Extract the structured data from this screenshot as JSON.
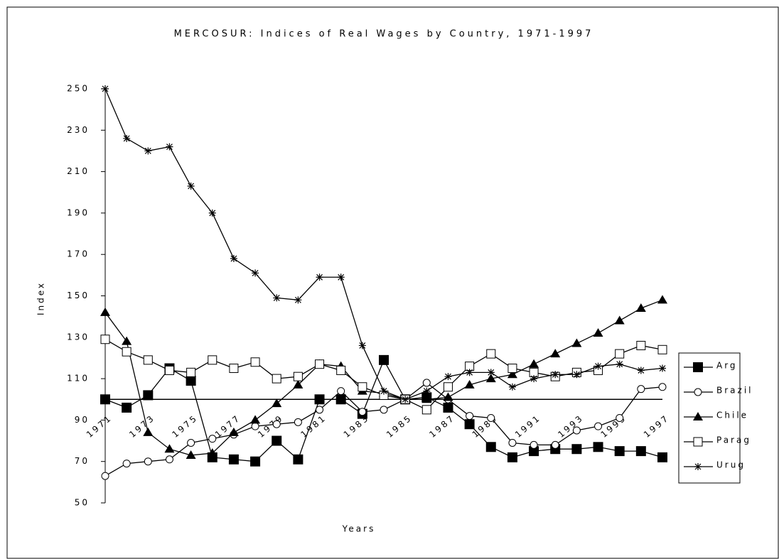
{
  "chart_data": {
    "type": "line",
    "title": "MERCOSUR: Indices of Real Wages by Country, 1971-1997",
    "x_label": "Years",
    "y_label": "Index",
    "categories": [
      "1971",
      null,
      "1973",
      null,
      "1975",
      null,
      "1977",
      null,
      "1979",
      null,
      "1981",
      null,
      "1983",
      null,
      "1985",
      null,
      "1987",
      null,
      "1989",
      null,
      "1991",
      null,
      "1993",
      null,
      "1995",
      null,
      "1997"
    ],
    "ylim": [
      50,
      250
    ],
    "yticks": [
      50,
      70,
      90,
      110,
      130,
      150,
      170,
      190,
      210,
      230,
      250
    ],
    "hline": 100,
    "series": [
      {
        "name": "Arg",
        "color": "#000000",
        "marker": "square-filled",
        "values": [
          100,
          96,
          102,
          115,
          109,
          72,
          71,
          70,
          80,
          71,
          100,
          100,
          93,
          119,
          100,
          101,
          96,
          88,
          77,
          72,
          75,
          76,
          76,
          77,
          75,
          75,
          72
        ]
      },
      {
        "name": "Brazil",
        "color": "#000000",
        "marker": "circle-open",
        "values": [
          63,
          69,
          70,
          71,
          79,
          81,
          83,
          87,
          88,
          89,
          95,
          104,
          94,
          95,
          100,
          108,
          100,
          92,
          91,
          79,
          78,
          78,
          85,
          87,
          91,
          105,
          106
        ]
      },
      {
        "name": "Chile",
        "color": "#000000",
        "marker": "triangle-filled",
        "values": [
          142,
          128,
          84,
          76,
          73,
          74,
          84,
          90,
          98,
          107,
          117,
          116,
          104,
          103,
          100,
          100,
          101,
          107,
          110,
          112,
          117,
          122,
          127,
          132,
          138,
          144,
          148
        ]
      },
      {
        "name": "Parag",
        "color": "#000000",
        "marker": "square-open",
        "values": [
          129,
          123,
          119,
          114,
          113,
          119,
          115,
          118,
          110,
          111,
          117,
          114,
          106,
          102,
          100,
          95,
          106,
          116,
          122,
          115,
          113,
          111,
          113,
          114,
          122,
          126,
          124
        ]
      },
      {
        "name": "Urug",
        "color": "#000000",
        "marker": "star",
        "values": [
          250,
          226,
          220,
          222,
          203,
          190,
          168,
          161,
          149,
          148,
          159,
          159,
          126,
          104,
          100,
          104,
          111,
          113,
          113,
          106,
          110,
          112,
          112,
          116,
          117,
          114,
          115
        ]
      }
    ]
  }
}
